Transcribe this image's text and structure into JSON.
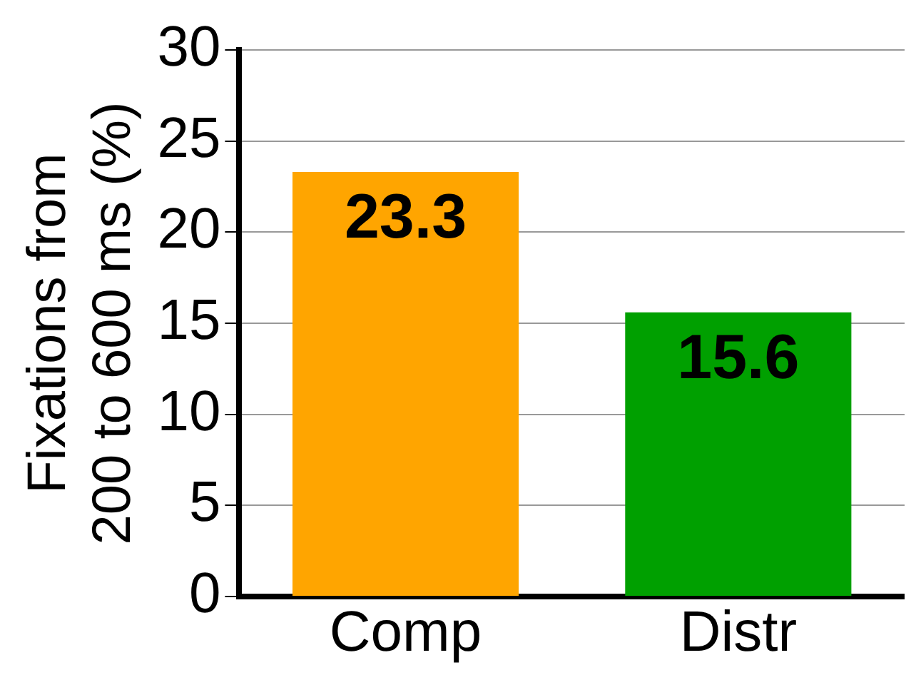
{
  "chart_data": {
    "type": "bar",
    "ylabel": "Fixations from\n200 to 600 ms (%)",
    "categories": [
      "Comp",
      "Distr"
    ],
    "values": [
      23.3,
      15.6
    ],
    "colors": [
      "#ffa500",
      "#00a000"
    ],
    "ylim": [
      0,
      30
    ],
    "yticks": [
      0,
      5,
      10,
      15,
      20,
      25,
      30
    ],
    "grid": "y",
    "data_labels": true
  }
}
